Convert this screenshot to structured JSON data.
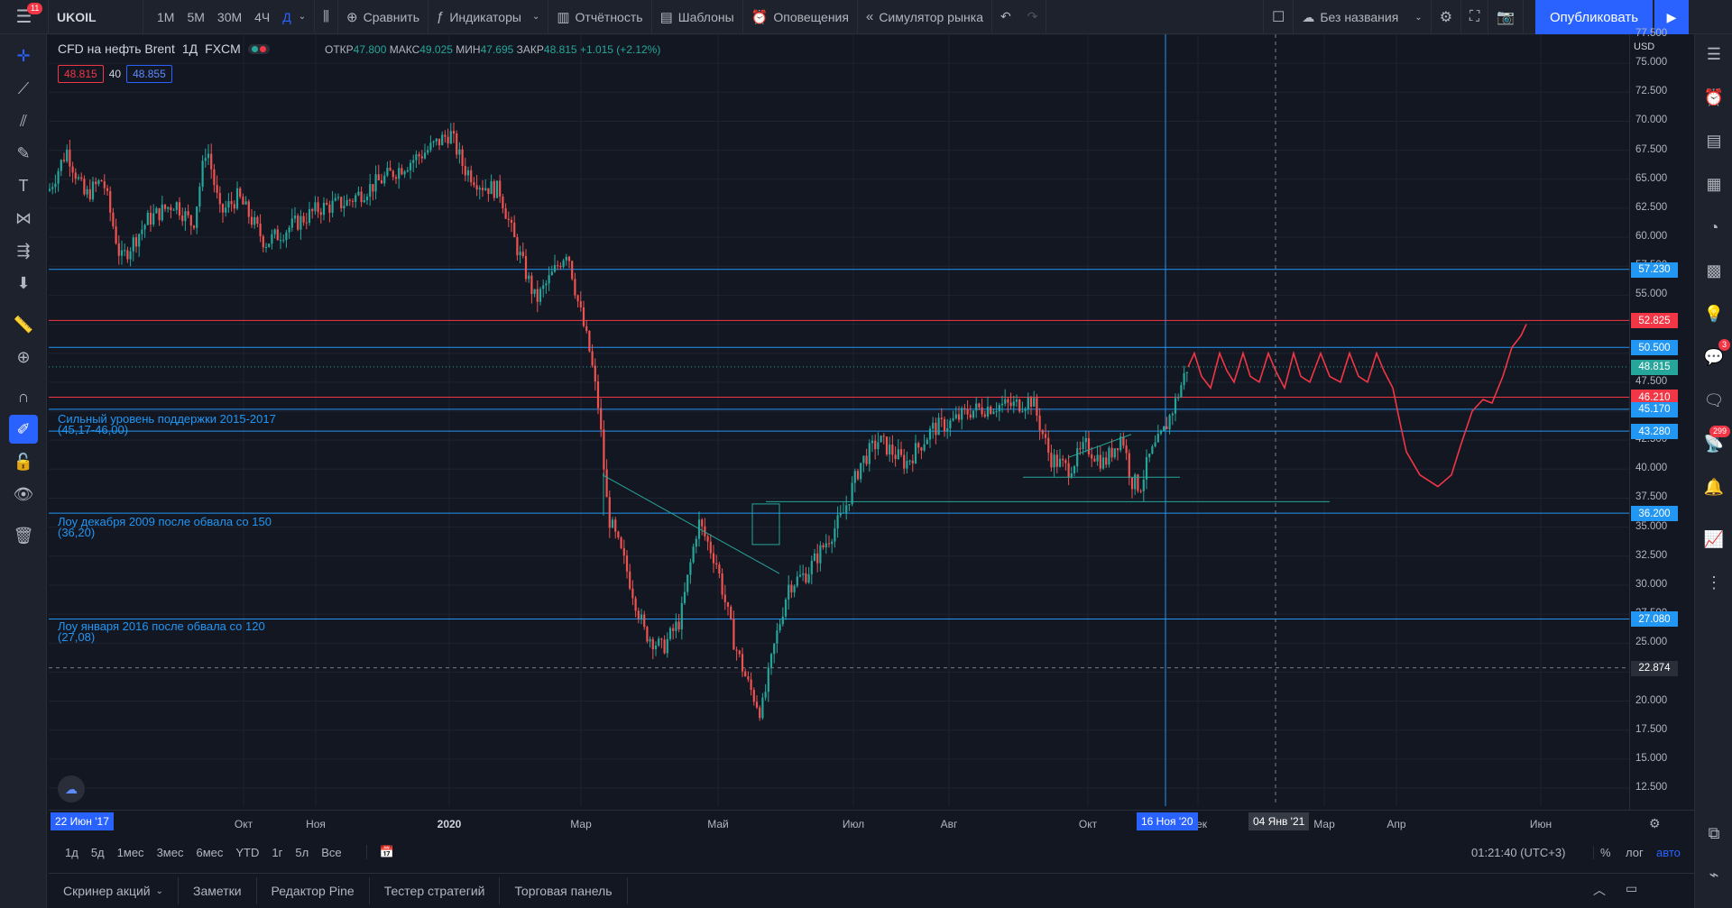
{
  "topbar": {
    "notif_count": "11",
    "symbol": "UKOIL",
    "timeframes": [
      "1M",
      "5M",
      "30M",
      "4Ч",
      "Д"
    ],
    "active_tf": "Д",
    "compare": "Сравнить",
    "indicators": "Индикаторы",
    "reports": "Отчётность",
    "templates": "Шаблоны",
    "alerts": "Оповещения",
    "replay": "Симулятор рынка",
    "layout_name": "Без названия",
    "publish": "Опубликовать"
  },
  "legend": {
    "title": "CFD на нефть Brent",
    "interval": "1Д",
    "exchange": "FXCM",
    "open_label": "ОТКР",
    "open": "47.800",
    "high_label": "МАКС",
    "high": "49.025",
    "low_label": "МИН",
    "low": "47.695",
    "close_label": "ЗАКР",
    "close": "48.815",
    "change": "+1.015 (+2.12%)",
    "bid": "48.815",
    "spread": "40",
    "ask": "48.855"
  },
  "annotations": {
    "support1_line1": "Сильный уровень поддержки 2015-2017",
    "support1_line2": "(45,17-46,00)",
    "support2_line1": "Лоу декабря 2009 после обвала со 150",
    "support2_line2": "(36,20)",
    "support3_line1": "Лоу января 2016 после обвала со 120",
    "support3_line2": "(27,08)"
  },
  "price_axis": {
    "currency": "USD",
    "ticks": [
      "77.500",
      "75.000",
      "72.500",
      "70.000",
      "67.500",
      "65.000",
      "62.500",
      "60.000",
      "57.500",
      "55.000",
      "52.500",
      "50.000",
      "47.500",
      "45.000",
      "42.500",
      "40.000",
      "37.500",
      "35.000",
      "32.500",
      "30.000",
      "27.500",
      "25.000",
      "22.500",
      "20.000",
      "17.500",
      "15.000",
      "12.500"
    ],
    "labels": [
      {
        "text": "57.230",
        "price": 57.23,
        "color": "#2196f3"
      },
      {
        "text": "52.825",
        "price": 52.825,
        "color": "#f23645"
      },
      {
        "text": "50.500",
        "price": 50.5,
        "color": "#2196f3"
      },
      {
        "text": "48.815",
        "price": 48.815,
        "color": "#26a69a"
      },
      {
        "text": "46.210",
        "price": 46.21,
        "color": "#f23645"
      },
      {
        "text": "45.170",
        "price": 45.17,
        "color": "#2196f3"
      },
      {
        "text": "43.280",
        "price": 43.28,
        "color": "#2196f3"
      },
      {
        "text": "36.200",
        "price": 36.2,
        "color": "#2196f3"
      },
      {
        "text": "27.080",
        "price": 27.08,
        "color": "#2196f3"
      },
      {
        "text": "22.874",
        "price": 22.874,
        "color": "#2a2e39"
      }
    ]
  },
  "time_axis": {
    "ticks": [
      "Окт",
      "Ноя",
      "2020",
      "Мар",
      "Май",
      "Июл",
      "Авг",
      "Окт",
      "Дек",
      "Мар",
      "Апр",
      "Июн"
    ],
    "start_label": "22 Июн '17",
    "cursor_label": "16 Ноя '20",
    "future_label": "04 Янв '21"
  },
  "range_bar": {
    "ranges": [
      "1д",
      "5д",
      "1мес",
      "3мес",
      "6мес",
      "YTD",
      "1г",
      "5л",
      "Все"
    ],
    "clock": "01:21:40 (UTC+3)",
    "percent": "%",
    "log": "лог",
    "auto": "авто"
  },
  "panels": [
    "Скринер акций",
    "Заметки",
    "Редактор Pine",
    "Тестер стратегий",
    "Торговая панель"
  ],
  "right_badges": {
    "chat": "3",
    "notifications": "299"
  },
  "colors": {
    "up": "#26a69a",
    "down": "#ef5350",
    "blue_line": "#2196f3",
    "red_line": "#f23645",
    "accent": "#2962ff"
  }
}
